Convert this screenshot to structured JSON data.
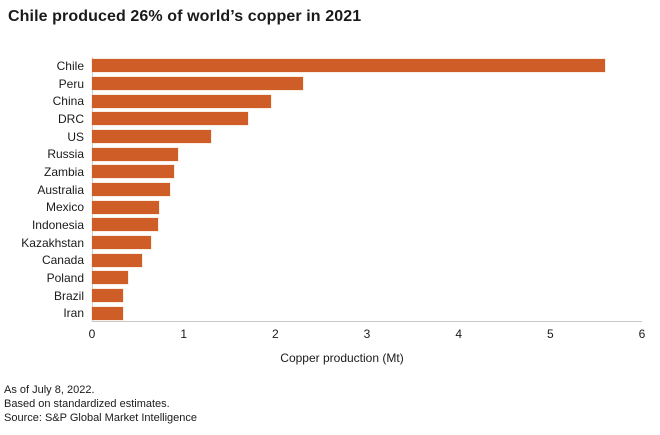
{
  "title": "Chile produced 26% of world’s copper in 2021",
  "chart_data": {
    "type": "bar",
    "orientation": "horizontal",
    "title": "Chile produced 26% of world’s copper in 2021",
    "categories": [
      "Chile",
      "Peru",
      "China",
      "DRC",
      "US",
      "Russia",
      "Zambia",
      "Australia",
      "Mexico",
      "Indonesia",
      "Kazakhstan",
      "Canada",
      "Poland",
      "Brazil",
      "Iran"
    ],
    "values": [
      5.6,
      2.3,
      1.95,
      1.7,
      1.3,
      0.94,
      0.89,
      0.85,
      0.73,
      0.72,
      0.64,
      0.55,
      0.39,
      0.34,
      0.34
    ],
    "xlabel": "Copper production (Mt)",
    "xlim": [
      0,
      6
    ],
    "xticks": [
      "0",
      "1",
      "2",
      "3",
      "4",
      "5",
      "6"
    ],
    "grid": false,
    "legend": "none",
    "bar_color": "#CF5D28",
    "axis_color": "#c9c9c9"
  },
  "footnotes": [
    "As of July 8, 2022.",
    "Based on standardized estimates.",
    "Source: S&P Global Market Intelligence"
  ]
}
